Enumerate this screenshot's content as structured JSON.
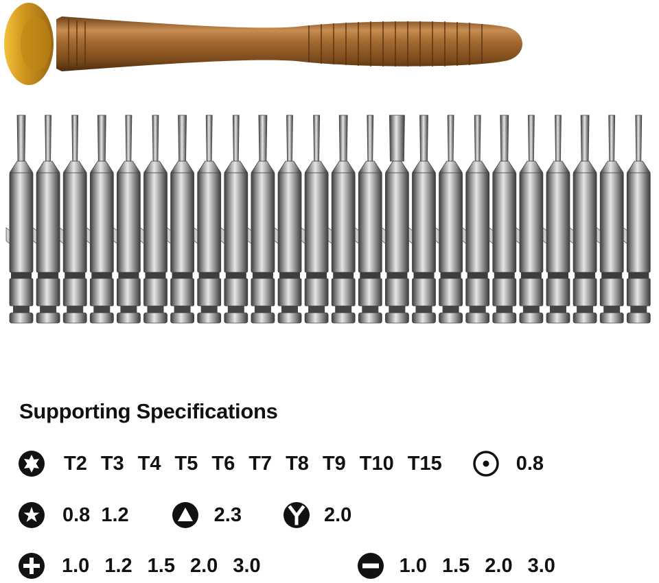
{
  "image": {
    "subject": "Precision screwdriver handle with a row of 24 interchangeable steel bits",
    "handle_colors": {
      "cap": "#d39a1f",
      "shaft": "#8f5a22",
      "shaft_highlight": "#c78d52"
    },
    "bit_color": "#9a9a9a"
  },
  "specs": {
    "heading": "Supporting Specifications",
    "rows": [
      {
        "groups": [
          {
            "icon": "torx-icon",
            "values": [
              "T2",
              "T3",
              "T4",
              "T5",
              "T6",
              "T7",
              "T8",
              "T9",
              "T10",
              "T15"
            ]
          },
          {
            "icon": "tri-point-dot-icon",
            "values": [
              "0.8"
            ]
          }
        ]
      },
      {
        "groups": [
          {
            "icon": "pentalobe-icon",
            "values": [
              "0.8",
              "1.2"
            ]
          },
          {
            "icon": "triangle-icon",
            "values": [
              "2.3"
            ]
          },
          {
            "icon": "y-tip-icon",
            "values": [
              "2.0"
            ]
          }
        ]
      },
      {
        "groups": [
          {
            "icon": "phillips-icon",
            "values": [
              "1.0",
              "1.2",
              "1.5",
              "2.0",
              "3.0"
            ]
          },
          {
            "icon": "slotted-icon",
            "values": [
              "1.0",
              "1.5",
              "2.0",
              "3.0"
            ]
          }
        ]
      }
    ]
  }
}
